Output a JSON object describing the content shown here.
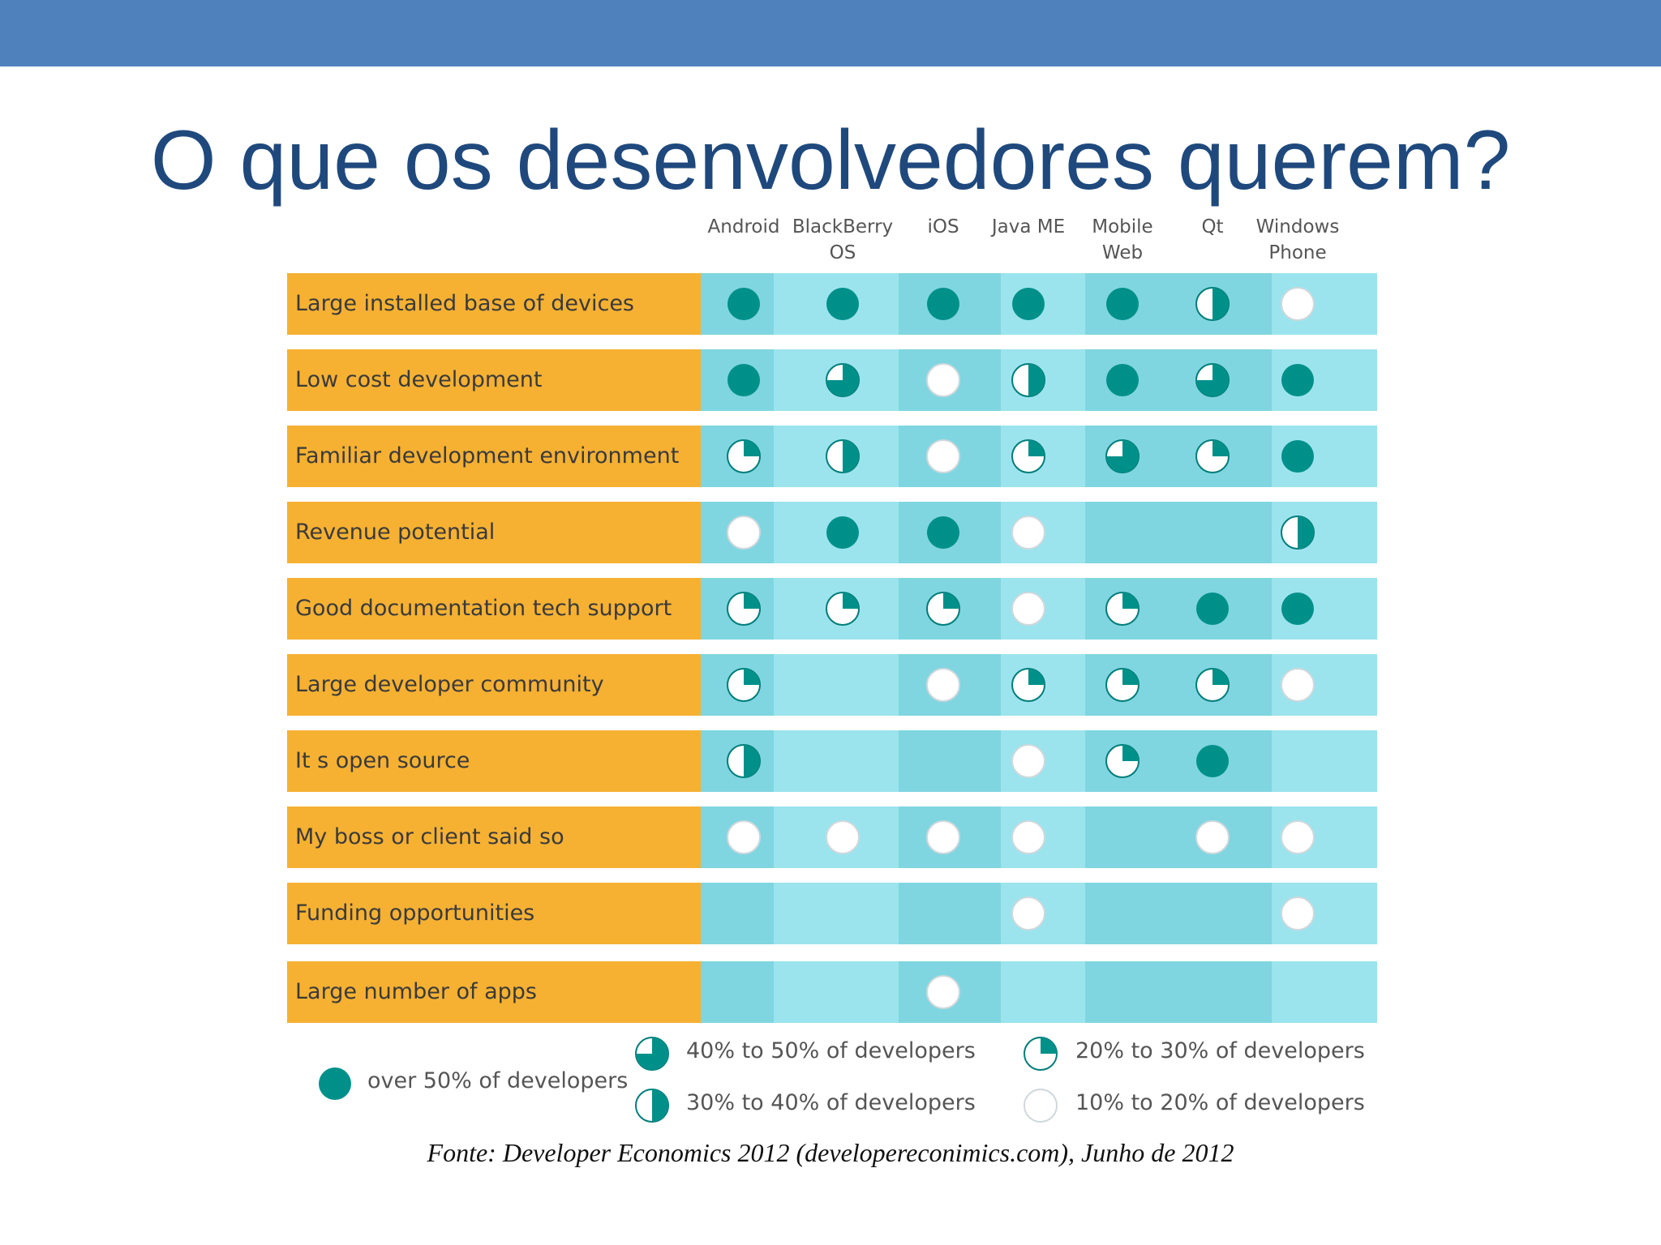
{
  "slide": {
    "title": "O que os desenvolvedores querem?",
    "source": "Fonte: Developer Economics 2012 (developereconimics.com), Junho de 2012"
  },
  "colors": {
    "header_bar": "#4f81bd",
    "title": "#1f497d",
    "label_bg": "#f6b133",
    "band_dark": "#7fd6e0",
    "band_light": "#9be4ee",
    "marker_fill": "#00908a",
    "marker_stroke": "#007d79"
  },
  "chart_data": {
    "type": "table",
    "columns": [
      "Android",
      "BlackBerry\nOS",
      "iOS",
      "Java ME",
      "Mobile\nWeb",
      "Qt",
      "Windows\nPhone"
    ],
    "rows": [
      {
        "label": "Large installed base of devices",
        "values": [
          4,
          4,
          4,
          4,
          4,
          2,
          0
        ]
      },
      {
        "label": "Low cost development",
        "values": [
          4,
          3,
          0,
          2,
          4,
          3,
          4
        ]
      },
      {
        "label": "Familiar development environment",
        "values": [
          1,
          2,
          0,
          1,
          3,
          1,
          4
        ]
      },
      {
        "label": "Revenue potential",
        "values": [
          0,
          4,
          4,
          0,
          null,
          null,
          2
        ]
      },
      {
        "label": "Good documentation  tech support",
        "values": [
          1,
          1,
          1,
          0,
          1,
          4,
          4
        ]
      },
      {
        "label": "Large developer community",
        "values": [
          1,
          null,
          0,
          1,
          1,
          1,
          0
        ]
      },
      {
        "label": "It s open source",
        "values": [
          2,
          null,
          null,
          0,
          1,
          4,
          null
        ]
      },
      {
        "label": "My boss or client said so",
        "values": [
          0,
          0,
          0,
          0,
          null,
          0,
          0
        ]
      },
      {
        "label": "Funding opportunities",
        "values": [
          null,
          null,
          null,
          0,
          null,
          null,
          0
        ]
      },
      {
        "label": "Large number of apps",
        "values": [
          null,
          null,
          0,
          null,
          null,
          null,
          null
        ]
      }
    ],
    "levels": [
      {
        "level": 4,
        "label": "over 50% of developers"
      },
      {
        "level": 3,
        "label": "40% to 50% of developers"
      },
      {
        "level": 2,
        "label": "30% to 40% of developers"
      },
      {
        "level": 1,
        "label": "20% to 30% of developers"
      },
      {
        "level": 0,
        "label": "10% to 20% of developers"
      }
    ]
  }
}
